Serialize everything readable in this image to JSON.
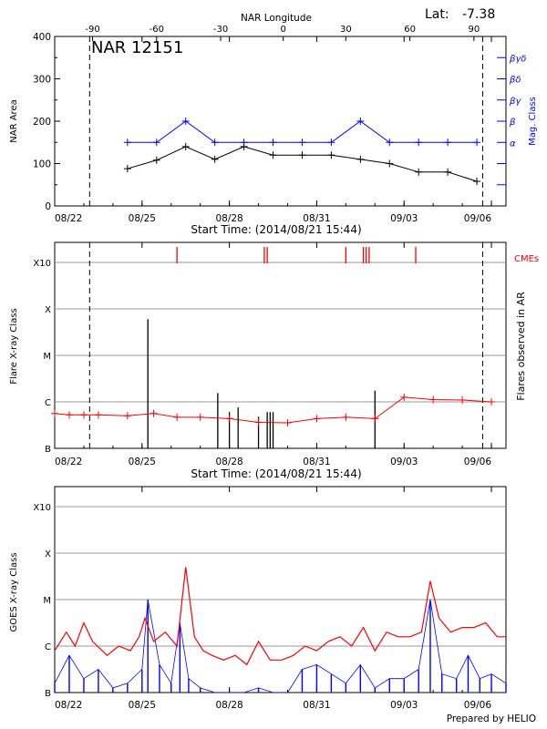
{
  "header": {
    "lat_label": "Lat:",
    "lat_value": "-7.38",
    "top_axis_title": "NAR Longitude",
    "start_time_1": "Start Time: (2014/08/21 15:44)",
    "start_time_2": "Start Time: (2014/08/21 15:44)",
    "footer": "Prepared by HELIO"
  },
  "colors": {
    "black": "#000000",
    "blue": "#0000ff",
    "red": "#ff0000",
    "grid": "#999999"
  },
  "chart_data": [
    {
      "type": "line",
      "title": "NAR 12151",
      "xlabel": "",
      "ylabel": "NAR Area",
      "right_ylabel": "Mag. Class",
      "xlim": [
        0,
        15.5
      ],
      "ylim": [
        0,
        400
      ],
      "yticks": [
        0,
        100,
        200,
        300,
        400
      ],
      "date_ticks": [
        {
          "label": "08/22",
          "x": 0
        },
        {
          "label": "08/25",
          "x": 3
        },
        {
          "label": "08/28",
          "x": 6
        },
        {
          "label": "08/31",
          "x": 9
        },
        {
          "label": "09/03",
          "x": 12
        },
        {
          "label": "09/06",
          "x": 15
        }
      ],
      "top_axis": {
        "label": "NAR Longitude",
        "ticks": [
          {
            "label": "-90",
            "x": 1.3
          },
          {
            "label": "-60",
            "x": 3.5
          },
          {
            "label": "-30",
            "x": 5.7
          },
          {
            "label": "0",
            "x": 7.85
          },
          {
            "label": "30",
            "x": 10.0
          },
          {
            "label": "60",
            "x": 12.2
          },
          {
            "label": "90",
            "x": 14.4
          }
        ]
      },
      "vlines_dashed": [
        1.2,
        14.7
      ],
      "right_axis": {
        "labels": [
          "α",
          "β",
          "βγ",
          "βδ",
          "βγδ"
        ],
        "values": [
          150,
          200,
          250,
          300,
          350
        ],
        "extra_ticks": [
          100,
          50
        ]
      },
      "series": [
        {
          "name": "",
          "color": "#000000",
          "x": [
            2.5,
            3.5,
            4.5,
            5.5,
            6.5,
            7.5,
            8.5,
            9.5,
            10.5,
            11.5,
            12.5,
            13.5,
            14.5
          ],
          "values": [
            88,
            108,
            140,
            110,
            140,
            120,
            120,
            120,
            110,
            100,
            80,
            80,
            58
          ]
        },
        {
          "name": "",
          "color": "#0000ff",
          "x": [
            2.5,
            3.5,
            4.5,
            5.5,
            6.5,
            7.5,
            8.5,
            9.5,
            10.5,
            11.5,
            12.5,
            13.5,
            14.5
          ],
          "values": [
            150,
            150,
            200,
            150,
            150,
            150,
            150,
            150,
            200,
            150,
            150,
            150,
            150
          ]
        }
      ]
    },
    {
      "type": "line",
      "title": "",
      "xlabel": "",
      "ylabel": "Flare X-ray Class",
      "right_ylabel": "Flares observed in AR",
      "right_label": "CMEs",
      "xlim": [
        0,
        15.5
      ],
      "ylim": [
        0,
        4
      ],
      "ytick_labels": [
        "B",
        "C",
        "M",
        "X",
        "X10"
      ],
      "ytick_values": [
        0,
        1,
        2,
        3,
        4
      ],
      "date_ticks": [
        {
          "label": "08/22",
          "x": 0
        },
        {
          "label": "08/25",
          "x": 3
        },
        {
          "label": "08/28",
          "x": 6
        },
        {
          "label": "08/31",
          "x": 9
        },
        {
          "label": "09/03",
          "x": 12
        },
        {
          "label": "09/06",
          "x": 15
        }
      ],
      "vlines_dashed": [
        1.2,
        14.7
      ],
      "cme_x": [
        4.2,
        7.2,
        7.3,
        10.0,
        10.6,
        10.7,
        10.8,
        12.4
      ],
      "flares": [
        {
          "x": 3.2,
          "level": 2.78
        },
        {
          "x": 5.6,
          "level": 1.19
        },
        {
          "x": 6.0,
          "level": 0.78
        },
        {
          "x": 6.3,
          "level": 0.88
        },
        {
          "x": 7.0,
          "level": 0.68
        },
        {
          "x": 7.3,
          "level": 0.78
        },
        {
          "x": 7.4,
          "level": 0.78
        },
        {
          "x": 7.5,
          "level": 0.78
        },
        {
          "x": 11.0,
          "level": 1.24
        }
      ],
      "series": [
        {
          "name": "",
          "color": "#ff0000",
          "x": [
            0.0,
            0.5,
            1.0,
            1.5,
            2.5,
            3.4,
            4.2,
            5.0,
            6.0,
            7.0,
            8.0,
            9.0,
            10.0,
            11.0,
            12.0,
            13.0,
            14.0,
            15.0
          ],
          "values": [
            0.75,
            0.72,
            0.72,
            0.72,
            0.7,
            0.75,
            0.67,
            0.67,
            0.64,
            0.56,
            0.55,
            0.64,
            0.67,
            0.64,
            1.1,
            1.05,
            1.04,
            1.0
          ]
        }
      ]
    },
    {
      "type": "line",
      "title": "",
      "xlabel": "",
      "ylabel": "GOES X-ray Class",
      "xlim": [
        0,
        15.5
      ],
      "ylim": [
        0,
        4
      ],
      "ytick_labels": [
        "B",
        "C",
        "M",
        "X",
        "X10"
      ],
      "ytick_values": [
        0,
        1,
        2,
        3,
        4
      ],
      "date_ticks": [
        {
          "label": "08/22",
          "x": 0
        },
        {
          "label": "08/25",
          "x": 3
        },
        {
          "label": "08/28",
          "x": 6
        },
        {
          "label": "08/31",
          "x": 9
        },
        {
          "label": "09/03",
          "x": 12
        },
        {
          "label": "09/06",
          "x": 15
        }
      ],
      "series": [
        {
          "name": "",
          "color": "#ff0000",
          "x": [
            0.0,
            0.4,
            0.7,
            1.0,
            1.3,
            1.8,
            2.2,
            2.6,
            2.9,
            3.1,
            3.4,
            3.8,
            4.2,
            4.5,
            4.8,
            5.1,
            5.4,
            5.8,
            6.2,
            6.6,
            7.0,
            7.4,
            7.8,
            8.2,
            8.6,
            9.0,
            9.4,
            9.8,
            10.2,
            10.6,
            11.0,
            11.4,
            11.8,
            12.2,
            12.6,
            12.9,
            13.2,
            13.6,
            14.0,
            14.4,
            14.8,
            15.2,
            15.5
          ],
          "values": [
            0.9,
            1.3,
            1.0,
            1.5,
            1.1,
            0.8,
            1.0,
            0.9,
            1.2,
            1.6,
            1.1,
            1.3,
            1.0,
            2.7,
            1.2,
            0.9,
            0.8,
            0.7,
            0.8,
            0.6,
            1.1,
            0.7,
            0.7,
            0.8,
            1.0,
            0.9,
            1.1,
            1.2,
            1.0,
            1.4,
            0.9,
            1.3,
            1.2,
            1.2,
            1.3,
            2.4,
            1.6,
            1.3,
            1.4,
            1.4,
            1.5,
            1.2,
            1.2
          ]
        },
        {
          "name": "",
          "color": "#0000ff",
          "x": [
            0.0,
            0.5,
            1.0,
            1.5,
            2.0,
            2.5,
            3.0,
            3.2,
            3.6,
            4.0,
            4.3,
            4.6,
            5.0,
            5.5,
            6.0,
            6.5,
            7.0,
            7.5,
            8.0,
            8.5,
            9.0,
            9.5,
            10.0,
            10.5,
            11.0,
            11.5,
            12.0,
            12.5,
            12.9,
            13.3,
            13.8,
            14.2,
            14.6,
            15.0,
            15.5
          ],
          "values": [
            0.2,
            0.8,
            0.3,
            0.5,
            0.1,
            0.2,
            0.5,
            2.0,
            0.6,
            0.2,
            1.5,
            0.3,
            0.1,
            0.0,
            0.0,
            0.0,
            0.1,
            0.0,
            0.0,
            0.5,
            0.6,
            0.4,
            0.2,
            0.6,
            0.1,
            0.3,
            0.3,
            0.5,
            2.0,
            0.4,
            0.3,
            0.8,
            0.3,
            0.4,
            0.2
          ]
        }
      ]
    }
  ]
}
